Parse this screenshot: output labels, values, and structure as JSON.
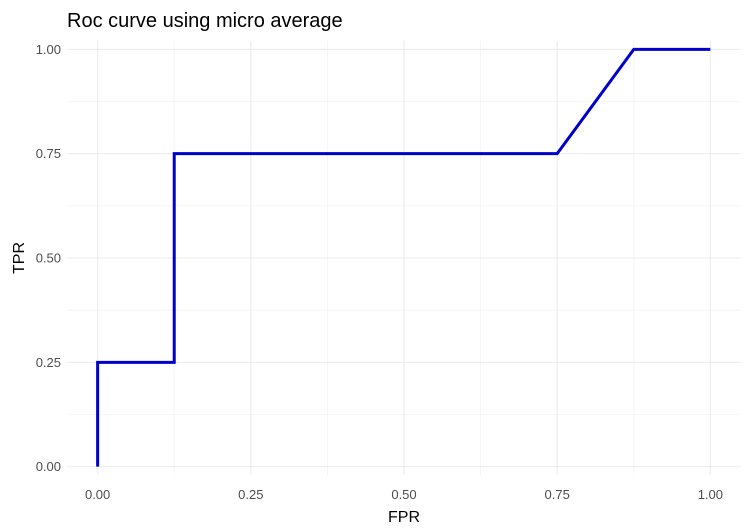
{
  "chart_data": {
    "type": "line",
    "title": "Roc curve using micro average",
    "xlabel": "FPR",
    "ylabel": "TPR",
    "xlim": [
      -0.05,
      1.05
    ],
    "ylim": [
      -0.02,
      1.02
    ],
    "x_ticks": [
      0.0,
      0.25,
      0.5,
      0.75,
      1.0
    ],
    "y_ticks": [
      0.0,
      0.25,
      0.5,
      0.75,
      1.0
    ],
    "x_tick_labels": [
      "0.00",
      "0.25",
      "0.50",
      "0.75",
      "1.00"
    ],
    "y_tick_labels": [
      "0.00",
      "0.25",
      "0.50",
      "0.75",
      "1.00"
    ],
    "grid": true,
    "legend": "none",
    "series": [
      {
        "color": "#0000cd",
        "x": [
          0.0,
          0.0,
          0.125,
          0.125,
          0.75,
          0.875,
          1.0
        ],
        "y": [
          0.0,
          0.25,
          0.25,
          0.75,
          0.75,
          1.0,
          1.0
        ]
      }
    ]
  }
}
